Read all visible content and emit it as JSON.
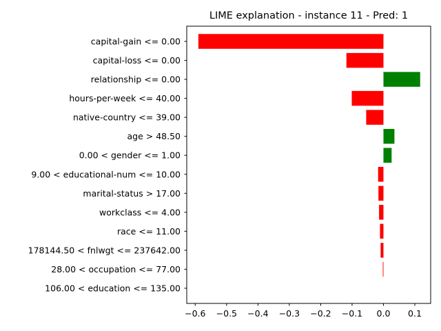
{
  "chart_data": {
    "type": "bar",
    "orientation": "horizontal",
    "title": "LIME explanation - instance 11 - Pred: 1",
    "xlabel": "",
    "ylabel": "",
    "xlim": [
      -0.627,
      0.1505
    ],
    "xticks": [
      -0.6,
      -0.5,
      -0.4,
      -0.3,
      -0.2,
      -0.1,
      0.0,
      0.1
    ],
    "xtick_labels": [
      "−0.6",
      "−0.5",
      "−0.4",
      "−0.3",
      "−0.2",
      "−0.1",
      "0.0",
      "0.1"
    ],
    "grid": false,
    "legend": "none",
    "positive_color": "#008000",
    "negative_color": "#ff0000",
    "categories": [
      "capital-gain <= 0.00",
      "capital-loss <= 0.00",
      "relationship <= 0.00",
      "hours-per-week <= 40.00",
      "native-country <= 39.00",
      "age > 48.50",
      "0.00 < gender <= 1.00",
      "9.00 < educational-num <= 10.00",
      "marital-status > 17.00",
      "workclass <= 4.00",
      "race <= 11.00",
      "178144.50 < fnlwgt <= 237642.00",
      "28.00 < occupation <= 77.00",
      "106.00 < education <= 135.00"
    ],
    "values": [
      -0.59,
      -0.118,
      0.117,
      -0.101,
      -0.055,
      0.035,
      0.026,
      -0.017,
      -0.016,
      -0.014,
      -0.011,
      -0.009,
      -0.002,
      0.0
    ]
  }
}
